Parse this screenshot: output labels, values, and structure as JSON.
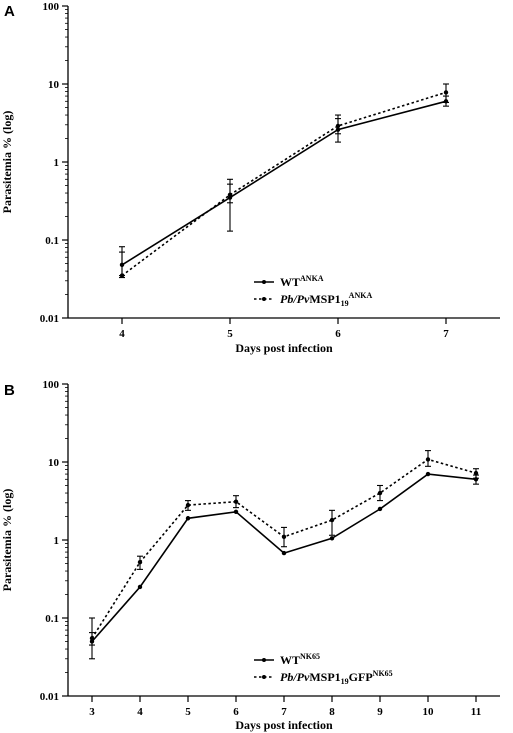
{
  "chart_data": [
    {
      "panel": "A",
      "type": "line",
      "xlabel": "Days post infection",
      "ylabel": "Parasitemia % (log)",
      "yscale": "log",
      "ylim": [
        0.01,
        100
      ],
      "xlim": [
        3.5,
        7.5
      ],
      "x": [
        4,
        5,
        6,
        7
      ],
      "xticks": [
        "4",
        "5",
        "6",
        "7"
      ],
      "yticks": [
        "0.01",
        "0.1",
        "1",
        "10",
        "100"
      ],
      "legend_position": "bottom-center",
      "series": [
        {
          "name": "WT",
          "name_sup": "ANKA",
          "style": "solid",
          "values": [
            0.048,
            0.35,
            2.6,
            6.0
          ],
          "err_low": [
            0.035,
            0.13,
            1.8,
            5.2
          ],
          "err_high": [
            0.082,
            0.6,
            3.6,
            7.0
          ]
        },
        {
          "name_italic": "Pb/Pv",
          "name": "MSP1",
          "name_sub": "19",
          "name_sup": "ANKA",
          "style": "dotted",
          "values": [
            0.035,
            0.38,
            2.9,
            7.8
          ],
          "err_low": [
            0.033,
            0.3,
            2.3,
            5.8
          ],
          "err_high": [
            0.07,
            0.52,
            4.0,
            10.0
          ]
        }
      ]
    },
    {
      "panel": "B",
      "type": "line",
      "xlabel": "Days post infection",
      "ylabel": "Parasitemia % (log)",
      "yscale": "log",
      "ylim": [
        0.01,
        100
      ],
      "xlim": [
        2.5,
        11.5
      ],
      "x": [
        3,
        4,
        5,
        6,
        7,
        8,
        9,
        10,
        11
      ],
      "xticks": [
        "3",
        "4",
        "5",
        "6",
        "7",
        "8",
        "9",
        "10",
        "11"
      ],
      "yticks": [
        "0.01",
        "0.1",
        "1",
        "10",
        "100"
      ],
      "legend_position": "bottom-center",
      "series": [
        {
          "name": "WT",
          "name_sup": "NK65",
          "style": "solid",
          "values": [
            0.05,
            0.25,
            1.9,
            2.3,
            0.68,
            1.05,
            2.5,
            7.0,
            6.0
          ],
          "err_low": [
            0.03,
            0.25,
            1.9,
            2.3,
            0.68,
            1.05,
            2.5,
            7.0,
            5.2
          ],
          "err_high": [
            0.1,
            0.25,
            1.9,
            2.3,
            0.68,
            1.05,
            2.5,
            7.0,
            6.8
          ]
        },
        {
          "name_italic": "Pb/Pv",
          "name": "MSP1",
          "name_sub": "19",
          "name_suffix": "GFP",
          "name_sup": "NK65",
          "style": "dotted",
          "values": [
            0.055,
            0.52,
            2.8,
            3.1,
            1.1,
            1.8,
            4.0,
            10.8,
            7.2
          ],
          "err_low": [
            0.045,
            0.42,
            2.4,
            2.6,
            0.82,
            1.15,
            3.2,
            8.8,
            6.2
          ],
          "err_high": [
            0.065,
            0.62,
            3.2,
            3.7,
            1.45,
            2.4,
            5.0,
            14.0,
            8.2
          ]
        }
      ]
    }
  ]
}
